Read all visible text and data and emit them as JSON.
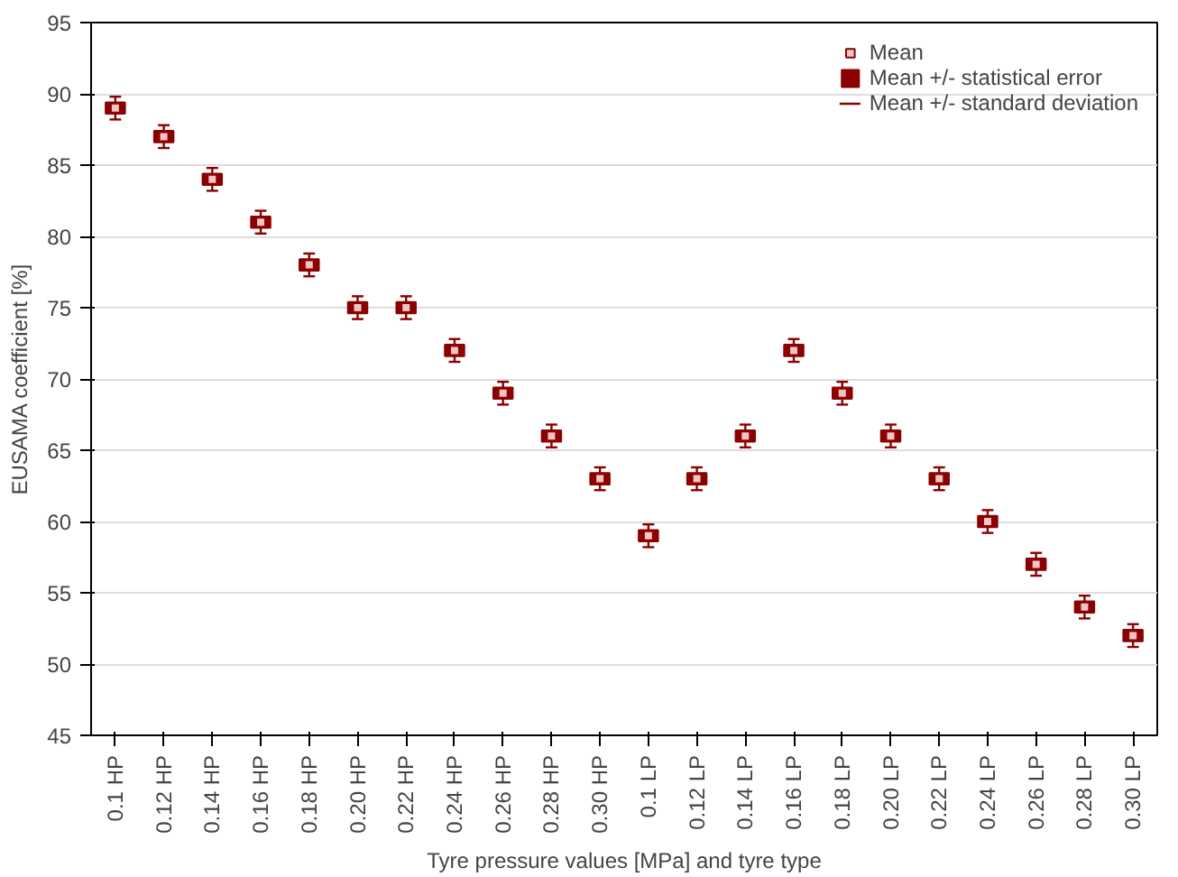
{
  "chart_data": {
    "type": "scatter",
    "xlabel": "Tyre pressure values [MPa] and tyre type",
    "ylabel": "EUSAMA coefficient [%]",
    "categories": [
      "0.1 HP",
      "0.12 HP",
      "0.14 HP",
      "0.16 HP",
      "0.18 HP",
      "0.20 HP",
      "0.22 HP",
      "0.24 HP",
      "0.26 HP",
      "0.28 HP",
      "0.30 HP",
      "0.1 LP",
      "0.12 LP",
      "0.14 LP",
      "0.16 LP",
      "0.18 LP",
      "0.20 LP",
      "0.22 LP",
      "0.24 LP",
      "0.26 LP",
      "0.28 LP",
      "0.30 LP"
    ],
    "series": [
      {
        "name": "Mean",
        "marker": "square",
        "color": "#8b0000",
        "values": [
          89,
          87,
          84,
          81,
          78,
          75,
          75,
          72,
          69,
          66,
          63,
          59,
          63,
          66,
          72,
          69,
          66,
          63,
          60,
          57,
          54,
          52
        ],
        "errors": [
          0.8,
          0.8,
          0.8,
          0.8,
          0.8,
          0.8,
          0.8,
          0.8,
          0.8,
          0.8,
          0.8,
          0.8,
          0.8,
          0.8,
          0.8,
          0.8,
          0.8,
          0.8,
          0.8,
          0.8,
          0.8,
          0.8
        ]
      },
      {
        "name": "Mean +/- statistical error",
        "type": "bar",
        "color": "#8b0000",
        "base": [
          88.6,
          86.6,
          83.6,
          80.6,
          77.6,
          74.6,
          74.6,
          71.6,
          68.6,
          65.6,
          62.6,
          58.6,
          62.6,
          65.6,
          71.6,
          68.6,
          65.6,
          62.6,
          59.6,
          56.6,
          53.6,
          51.6
        ],
        "values": [
          0.8,
          0.8,
          0.8,
          0.8,
          0.8,
          0.8,
          0.8,
          0.8,
          0.8,
          0.8,
          0.8,
          0.8,
          0.8,
          0.8,
          0.8,
          0.8,
          0.8,
          0.8,
          0.8,
          0.8,
          0.8,
          0.8
        ]
      }
    ],
    "annotations": [
      "Mean +/- standard deviation"
    ],
    "ylim": [
      45,
      95
    ],
    "yticks": [
      45,
      50,
      55,
      60,
      65,
      70,
      75,
      80,
      85,
      90,
      95
    ],
    "grid": "y",
    "legend": "top right"
  }
}
